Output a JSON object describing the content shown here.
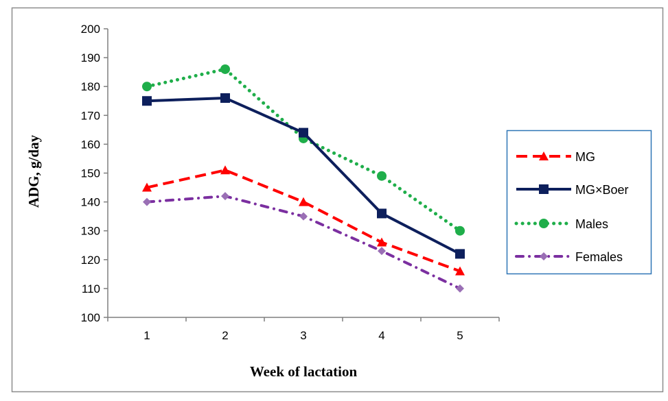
{
  "chart_data": {
    "type": "line",
    "title": "",
    "xlabel": "Week of lactation",
    "ylabel": "ADG, g/day",
    "categories": [
      "1",
      "2",
      "3",
      "4",
      "5"
    ],
    "ylim": [
      100,
      200
    ],
    "yticks": [
      100,
      110,
      120,
      130,
      140,
      150,
      160,
      170,
      180,
      190,
      200
    ],
    "grid": false,
    "legend_position": "right",
    "series": [
      {
        "name": "MG",
        "values": [
          145,
          151,
          140,
          126,
          116
        ],
        "color": "#ff0000",
        "line_style": "dashed",
        "marker": "triangle"
      },
      {
        "name": "MG×Boer",
        "values": [
          175,
          176,
          164,
          136,
          122
        ],
        "color": "#0d1f5c",
        "line_style": "solid",
        "marker": "square"
      },
      {
        "name": "Males",
        "values": [
          180,
          186,
          162,
          149,
          130
        ],
        "color": "#1fae4a",
        "line_style": "dotted",
        "marker": "circle"
      },
      {
        "name": "Females",
        "values": [
          140,
          142,
          135,
          123,
          110
        ],
        "color": "#7b2fa0",
        "line_style": "dash-dot",
        "marker": "diamond",
        "marker_color": "#9a6fb5"
      }
    ]
  }
}
